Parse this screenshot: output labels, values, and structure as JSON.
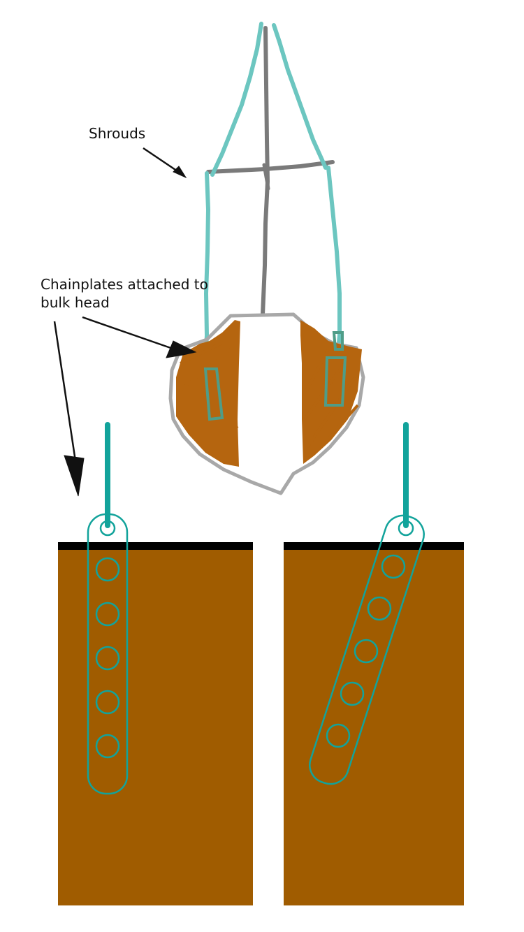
{
  "labels": {
    "shrouds": "Shrouds",
    "chainplates_line1": "Chainplates attached to",
    "chainplates_line2": "bulk head"
  },
  "colors": {
    "background": "#ffffff",
    "shroud_sketch": "#6cc6c0",
    "mast_gray": "#7a7a7a",
    "hull_outline": "#a8a8a8",
    "bulkhead_sketch": "#b5650f",
    "chainplate_sketch": "#4f9d88",
    "bulkhead_panel": "#a05c00",
    "deck_line": "#000000",
    "chainplate_teal": "#12a39b",
    "arrow": "#111111"
  },
  "panels": [
    {
      "name": "vertical-chainplate",
      "holes": 5
    },
    {
      "name": "angled-chainplate",
      "holes": 5
    }
  ]
}
